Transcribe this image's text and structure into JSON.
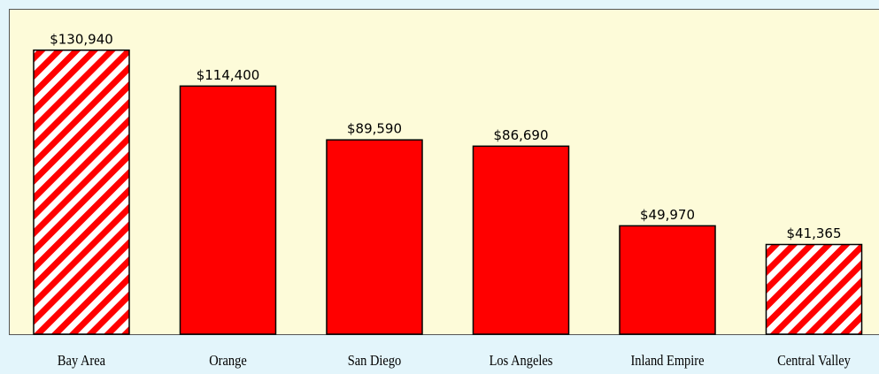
{
  "chart_data": {
    "type": "bar",
    "categories": [
      "Bay Area",
      "Orange",
      "San Diego",
      "Los Angeles",
      "Inland Empire",
      "Central Valley"
    ],
    "values": [
      130940,
      114400,
      89590,
      86690,
      49970,
      41365
    ],
    "value_labels": [
      "$130,940",
      "$114,400",
      "$89,590",
      "$86,690",
      "$49,970",
      "$41,365"
    ],
    "hatched": [
      true,
      false,
      false,
      false,
      false,
      true
    ],
    "color": "#ff0000",
    "ylim": [
      0,
      150000
    ]
  }
}
